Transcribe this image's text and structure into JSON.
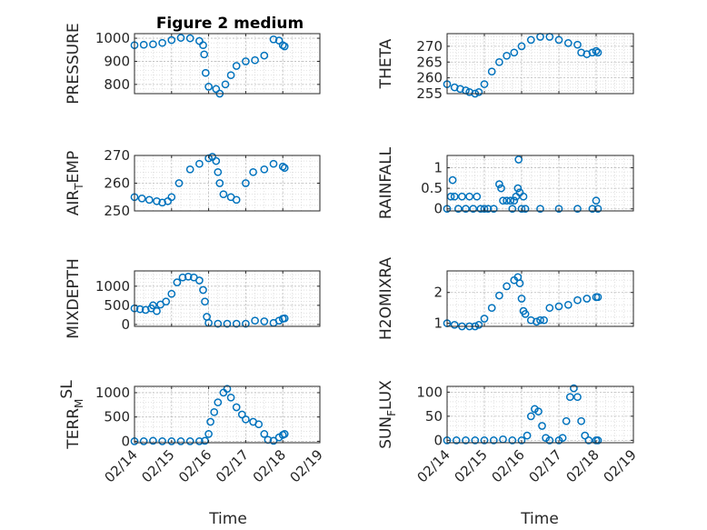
{
  "title": "Figure 2 medium",
  "xlabel": "Time",
  "x_tick_labels": [
    "02/14",
    "02/15",
    "02/16",
    "02/17",
    "02/18",
    "02/19"
  ],
  "marker_color": "#0072BD",
  "chart_data": [
    {
      "type": "scatter",
      "ylabel": "PRESSURE",
      "ylim": [
        760,
        1020
      ],
      "yticks": [
        800,
        900,
        1000
      ],
      "xlim": [
        0,
        5
      ],
      "points": [
        [
          0,
          970
        ],
        [
          0.25,
          972
        ],
        [
          0.5,
          974
        ],
        [
          0.75,
          980
        ],
        [
          1,
          992
        ],
        [
          1.25,
          1002
        ],
        [
          1.5,
          1000
        ],
        [
          1.75,
          988
        ],
        [
          1.85,
          970
        ],
        [
          1.88,
          930
        ],
        [
          1.92,
          850
        ],
        [
          2,
          790
        ],
        [
          2.2,
          780
        ],
        [
          2.3,
          760
        ],
        [
          2.45,
          800
        ],
        [
          2.6,
          840
        ],
        [
          2.75,
          880
        ],
        [
          3,
          900
        ],
        [
          3.25,
          905
        ],
        [
          3.5,
          925
        ],
        [
          3.75,
          995
        ],
        [
          3.9,
          990
        ],
        [
          4,
          970
        ],
        [
          4.05,
          965
        ]
      ]
    },
    {
      "type": "scatter",
      "ylabel": "THETA",
      "ylim": [
        255,
        274
      ],
      "yticks": [
        255,
        260,
        265,
        270
      ],
      "xlim": [
        0,
        5
      ],
      "points": [
        [
          0,
          258
        ],
        [
          0.2,
          257
        ],
        [
          0.35,
          256.5
        ],
        [
          0.5,
          256
        ],
        [
          0.6,
          255.5
        ],
        [
          0.75,
          255
        ],
        [
          0.85,
          255.5
        ],
        [
          1,
          258
        ],
        [
          1.2,
          262
        ],
        [
          1.4,
          265
        ],
        [
          1.6,
          267
        ],
        [
          1.8,
          268
        ],
        [
          2,
          270
        ],
        [
          2.25,
          272
        ],
        [
          2.5,
          273
        ],
        [
          2.75,
          273
        ],
        [
          3,
          272
        ],
        [
          3.25,
          271
        ],
        [
          3.5,
          270.5
        ],
        [
          3.6,
          268
        ],
        [
          3.75,
          267.5
        ],
        [
          3.9,
          268
        ],
        [
          4,
          268.5
        ],
        [
          4.05,
          268
        ]
      ]
    },
    {
      "type": "scatter",
      "ylabel": "AIR_TEMP",
      "ylim": [
        250,
        270
      ],
      "yticks": [
        250,
        260,
        270
      ],
      "xlim": [
        0,
        5
      ],
      "points": [
        [
          0,
          255
        ],
        [
          0.2,
          254.5
        ],
        [
          0.4,
          254
        ],
        [
          0.6,
          253.5
        ],
        [
          0.75,
          253
        ],
        [
          0.9,
          253.5
        ],
        [
          1,
          255
        ],
        [
          1.2,
          260
        ],
        [
          1.5,
          265
        ],
        [
          1.75,
          267
        ],
        [
          2,
          269
        ],
        [
          2.1,
          269.5
        ],
        [
          2.2,
          268
        ],
        [
          2.25,
          264
        ],
        [
          2.3,
          260
        ],
        [
          2.4,
          256
        ],
        [
          2.6,
          255
        ],
        [
          2.75,
          254
        ],
        [
          3,
          260
        ],
        [
          3.2,
          264
        ],
        [
          3.5,
          265
        ],
        [
          3.75,
          267
        ],
        [
          4,
          266
        ],
        [
          4.05,
          265.5
        ]
      ]
    },
    {
      "type": "scatter",
      "ylabel": "RAINFALL",
      "ylim": [
        -0.05,
        1.3
      ],
      "yticks": [
        0,
        0.5,
        1
      ],
      "xlim": [
        0,
        5
      ],
      "points": [
        [
          0,
          0
        ],
        [
          0.1,
          0.3
        ],
        [
          0.15,
          0.7
        ],
        [
          0.2,
          0.3
        ],
        [
          0.3,
          0
        ],
        [
          0.4,
          0.3
        ],
        [
          0.5,
          0
        ],
        [
          0.6,
          0.3
        ],
        [
          0.7,
          0
        ],
        [
          0.8,
          0.3
        ],
        [
          0.9,
          0
        ],
        [
          1,
          0
        ],
        [
          1.1,
          0
        ],
        [
          1.25,
          0
        ],
        [
          1.4,
          0.6
        ],
        [
          1.45,
          0.5
        ],
        [
          1.5,
          0.2
        ],
        [
          1.6,
          0.2
        ],
        [
          1.7,
          0.2
        ],
        [
          1.75,
          0
        ],
        [
          1.8,
          0.2
        ],
        [
          1.85,
          0.3
        ],
        [
          1.9,
          0.5
        ],
        [
          1.92,
          1.2
        ],
        [
          1.95,
          0.4
        ],
        [
          2,
          0
        ],
        [
          2.05,
          0.3
        ],
        [
          2.1,
          0
        ],
        [
          2.5,
          0
        ],
        [
          3,
          0
        ],
        [
          3.5,
          0
        ],
        [
          3.9,
          0
        ],
        [
          4,
          0.2
        ],
        [
          4.05,
          0
        ]
      ]
    },
    {
      "type": "scatter",
      "ylabel": "MIXDEPTH",
      "ylim": [
        -50,
        1400
      ],
      "yticks": [
        0,
        500,
        1000
      ],
      "xlim": [
        0,
        5
      ],
      "points": [
        [
          0,
          420
        ],
        [
          0.15,
          400
        ],
        [
          0.3,
          380
        ],
        [
          0.45,
          420
        ],
        [
          0.5,
          500
        ],
        [
          0.6,
          350
        ],
        [
          0.7,
          520
        ],
        [
          0.85,
          600
        ],
        [
          1,
          800
        ],
        [
          1.15,
          1100
        ],
        [
          1.3,
          1230
        ],
        [
          1.45,
          1250
        ],
        [
          1.6,
          1230
        ],
        [
          1.75,
          1150
        ],
        [
          1.85,
          900
        ],
        [
          1.9,
          600
        ],
        [
          1.95,
          200
        ],
        [
          2,
          40
        ],
        [
          2.25,
          20
        ],
        [
          2.5,
          20
        ],
        [
          2.75,
          20
        ],
        [
          3,
          20
        ],
        [
          3.25,
          100
        ],
        [
          3.5,
          80
        ],
        [
          3.75,
          40
        ],
        [
          3.9,
          100
        ],
        [
          4,
          150
        ],
        [
          4.05,
          160
        ]
      ]
    },
    {
      "type": "scatter",
      "ylabel": "H2OMIXRA",
      "ylim": [
        0.9,
        2.7
      ],
      "yticks": [
        1,
        2
      ],
      "xlim": [
        0,
        5
      ],
      "points": [
        [
          0,
          1
        ],
        [
          0.2,
          0.95
        ],
        [
          0.4,
          0.9
        ],
        [
          0.6,
          0.9
        ],
        [
          0.75,
          0.9
        ],
        [
          0.85,
          0.95
        ],
        [
          1,
          1.15
        ],
        [
          1.2,
          1.5
        ],
        [
          1.4,
          1.9
        ],
        [
          1.6,
          2.2
        ],
        [
          1.8,
          2.4
        ],
        [
          1.9,
          2.5
        ],
        [
          1.95,
          2.3
        ],
        [
          2,
          1.8
        ],
        [
          2.05,
          1.4
        ],
        [
          2.1,
          1.3
        ],
        [
          2.25,
          1.1
        ],
        [
          2.4,
          1.05
        ],
        [
          2.5,
          1.1
        ],
        [
          2.6,
          1.1
        ],
        [
          2.75,
          1.5
        ],
        [
          3,
          1.55
        ],
        [
          3.25,
          1.6
        ],
        [
          3.5,
          1.75
        ],
        [
          3.75,
          1.8
        ],
        [
          4,
          1.85
        ],
        [
          4.05,
          1.85
        ]
      ]
    },
    {
      "type": "scatter",
      "ylabel": "TERR_MSL",
      "ylim": [
        -30,
        1130
      ],
      "yticks": [
        0,
        500,
        1000
      ],
      "xlim": [
        0,
        5
      ],
      "points": [
        [
          0,
          0
        ],
        [
          0.25,
          0
        ],
        [
          0.5,
          10
        ],
        [
          0.75,
          0
        ],
        [
          1,
          0
        ],
        [
          1.25,
          0
        ],
        [
          1.5,
          0
        ],
        [
          1.75,
          0
        ],
        [
          1.9,
          10
        ],
        [
          2,
          150
        ],
        [
          2.05,
          400
        ],
        [
          2.15,
          600
        ],
        [
          2.25,
          800
        ],
        [
          2.4,
          1000
        ],
        [
          2.5,
          1080
        ],
        [
          2.6,
          900
        ],
        [
          2.75,
          700
        ],
        [
          2.9,
          550
        ],
        [
          3,
          450
        ],
        [
          3.2,
          400
        ],
        [
          3.35,
          350
        ],
        [
          3.5,
          150
        ],
        [
          3.6,
          30
        ],
        [
          3.75,
          10
        ],
        [
          3.9,
          80
        ],
        [
          4,
          130
        ],
        [
          4.05,
          150
        ]
      ]
    },
    {
      "type": "scatter",
      "ylabel": "SUN_FLUX",
      "ylim": [
        -5,
        112
      ],
      "yticks": [
        0,
        50,
        100
      ],
      "xlim": [
        0,
        5
      ],
      "points": [
        [
          0,
          0
        ],
        [
          0.25,
          0
        ],
        [
          0.5,
          0
        ],
        [
          0.75,
          0
        ],
        [
          1,
          0
        ],
        [
          1.25,
          0
        ],
        [
          1.5,
          2
        ],
        [
          1.75,
          0
        ],
        [
          2,
          0
        ],
        [
          2.15,
          10
        ],
        [
          2.25,
          50
        ],
        [
          2.35,
          65
        ],
        [
          2.45,
          60
        ],
        [
          2.55,
          30
        ],
        [
          2.65,
          5
        ],
        [
          2.75,
          0
        ],
        [
          3,
          0
        ],
        [
          3.1,
          5
        ],
        [
          3.2,
          40
        ],
        [
          3.3,
          90
        ],
        [
          3.4,
          108
        ],
        [
          3.5,
          90
        ],
        [
          3.6,
          40
        ],
        [
          3.7,
          10
        ],
        [
          3.8,
          0
        ],
        [
          4,
          0
        ],
        [
          4.05,
          0
        ]
      ]
    }
  ]
}
